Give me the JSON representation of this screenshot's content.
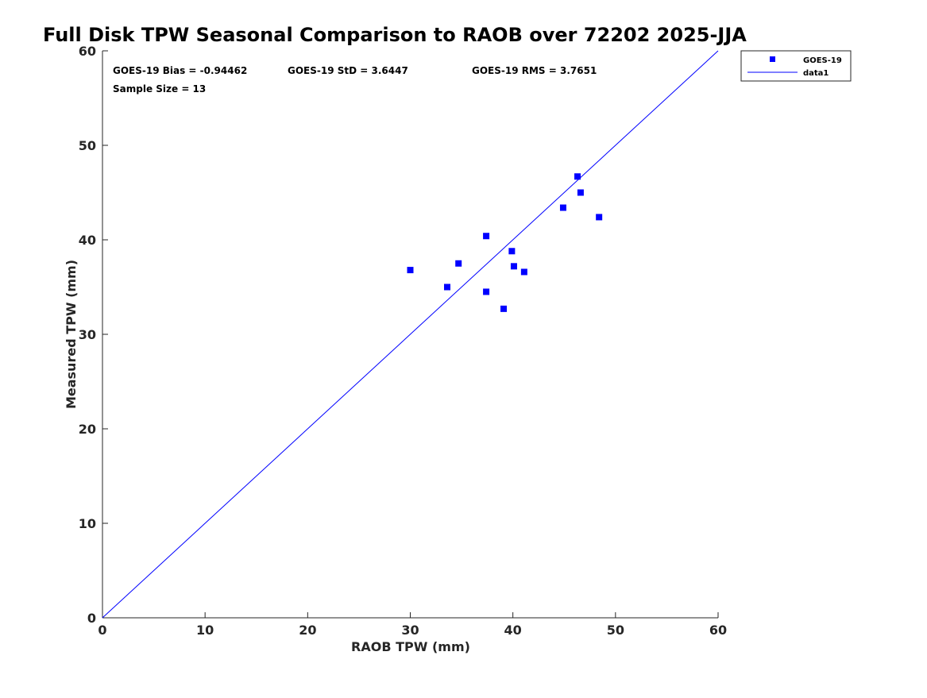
{
  "chart_data": {
    "type": "scatter",
    "title": "Full Disk TPW Seasonal Comparison to RAOB over 72202 2025-JJA",
    "xlabel": "RAOB TPW (mm)",
    "ylabel": "Measured TPW (mm)",
    "xlim": [
      0,
      60
    ],
    "ylim": [
      0,
      60
    ],
    "xticks": [
      0,
      10,
      20,
      30,
      40,
      50,
      60
    ],
    "yticks": [
      0,
      10,
      20,
      30,
      40,
      50,
      60
    ],
    "xtick_labels": [
      "0",
      "10",
      "20",
      "30",
      "40",
      "50",
      "60"
    ],
    "ytick_labels": [
      "0",
      "10",
      "20",
      "30",
      "40",
      "50",
      "60"
    ],
    "grid": false,
    "legend_position": "outside top-right",
    "series": [
      {
        "name": "GOES-19",
        "kind": "scatter",
        "marker": "square",
        "color": "#0000ff",
        "points": [
          {
            "x": 30.0,
            "y": 36.8
          },
          {
            "x": 33.6,
            "y": 35.0
          },
          {
            "x": 34.7,
            "y": 37.5
          },
          {
            "x": 37.4,
            "y": 40.4
          },
          {
            "x": 37.4,
            "y": 34.5
          },
          {
            "x": 39.1,
            "y": 32.7
          },
          {
            "x": 39.9,
            "y": 38.8
          },
          {
            "x": 40.1,
            "y": 37.2
          },
          {
            "x": 41.1,
            "y": 36.6
          },
          {
            "x": 44.9,
            "y": 43.4
          },
          {
            "x": 46.3,
            "y": 46.7
          },
          {
            "x": 46.6,
            "y": 45.0
          },
          {
            "x": 48.4,
            "y": 42.4
          }
        ]
      },
      {
        "name": "data1",
        "kind": "line",
        "color": "#0000ff",
        "points": [
          {
            "x": 0,
            "y": 0
          },
          {
            "x": 60,
            "y": 60
          }
        ]
      }
    ],
    "annotations": {
      "bias": "GOES-19 Bias = -0.94462",
      "std": "GOES-19 StD = 3.6447",
      "rms": "GOES-19 RMS = 3.7651",
      "sample_size": "Sample Size = 13"
    }
  }
}
